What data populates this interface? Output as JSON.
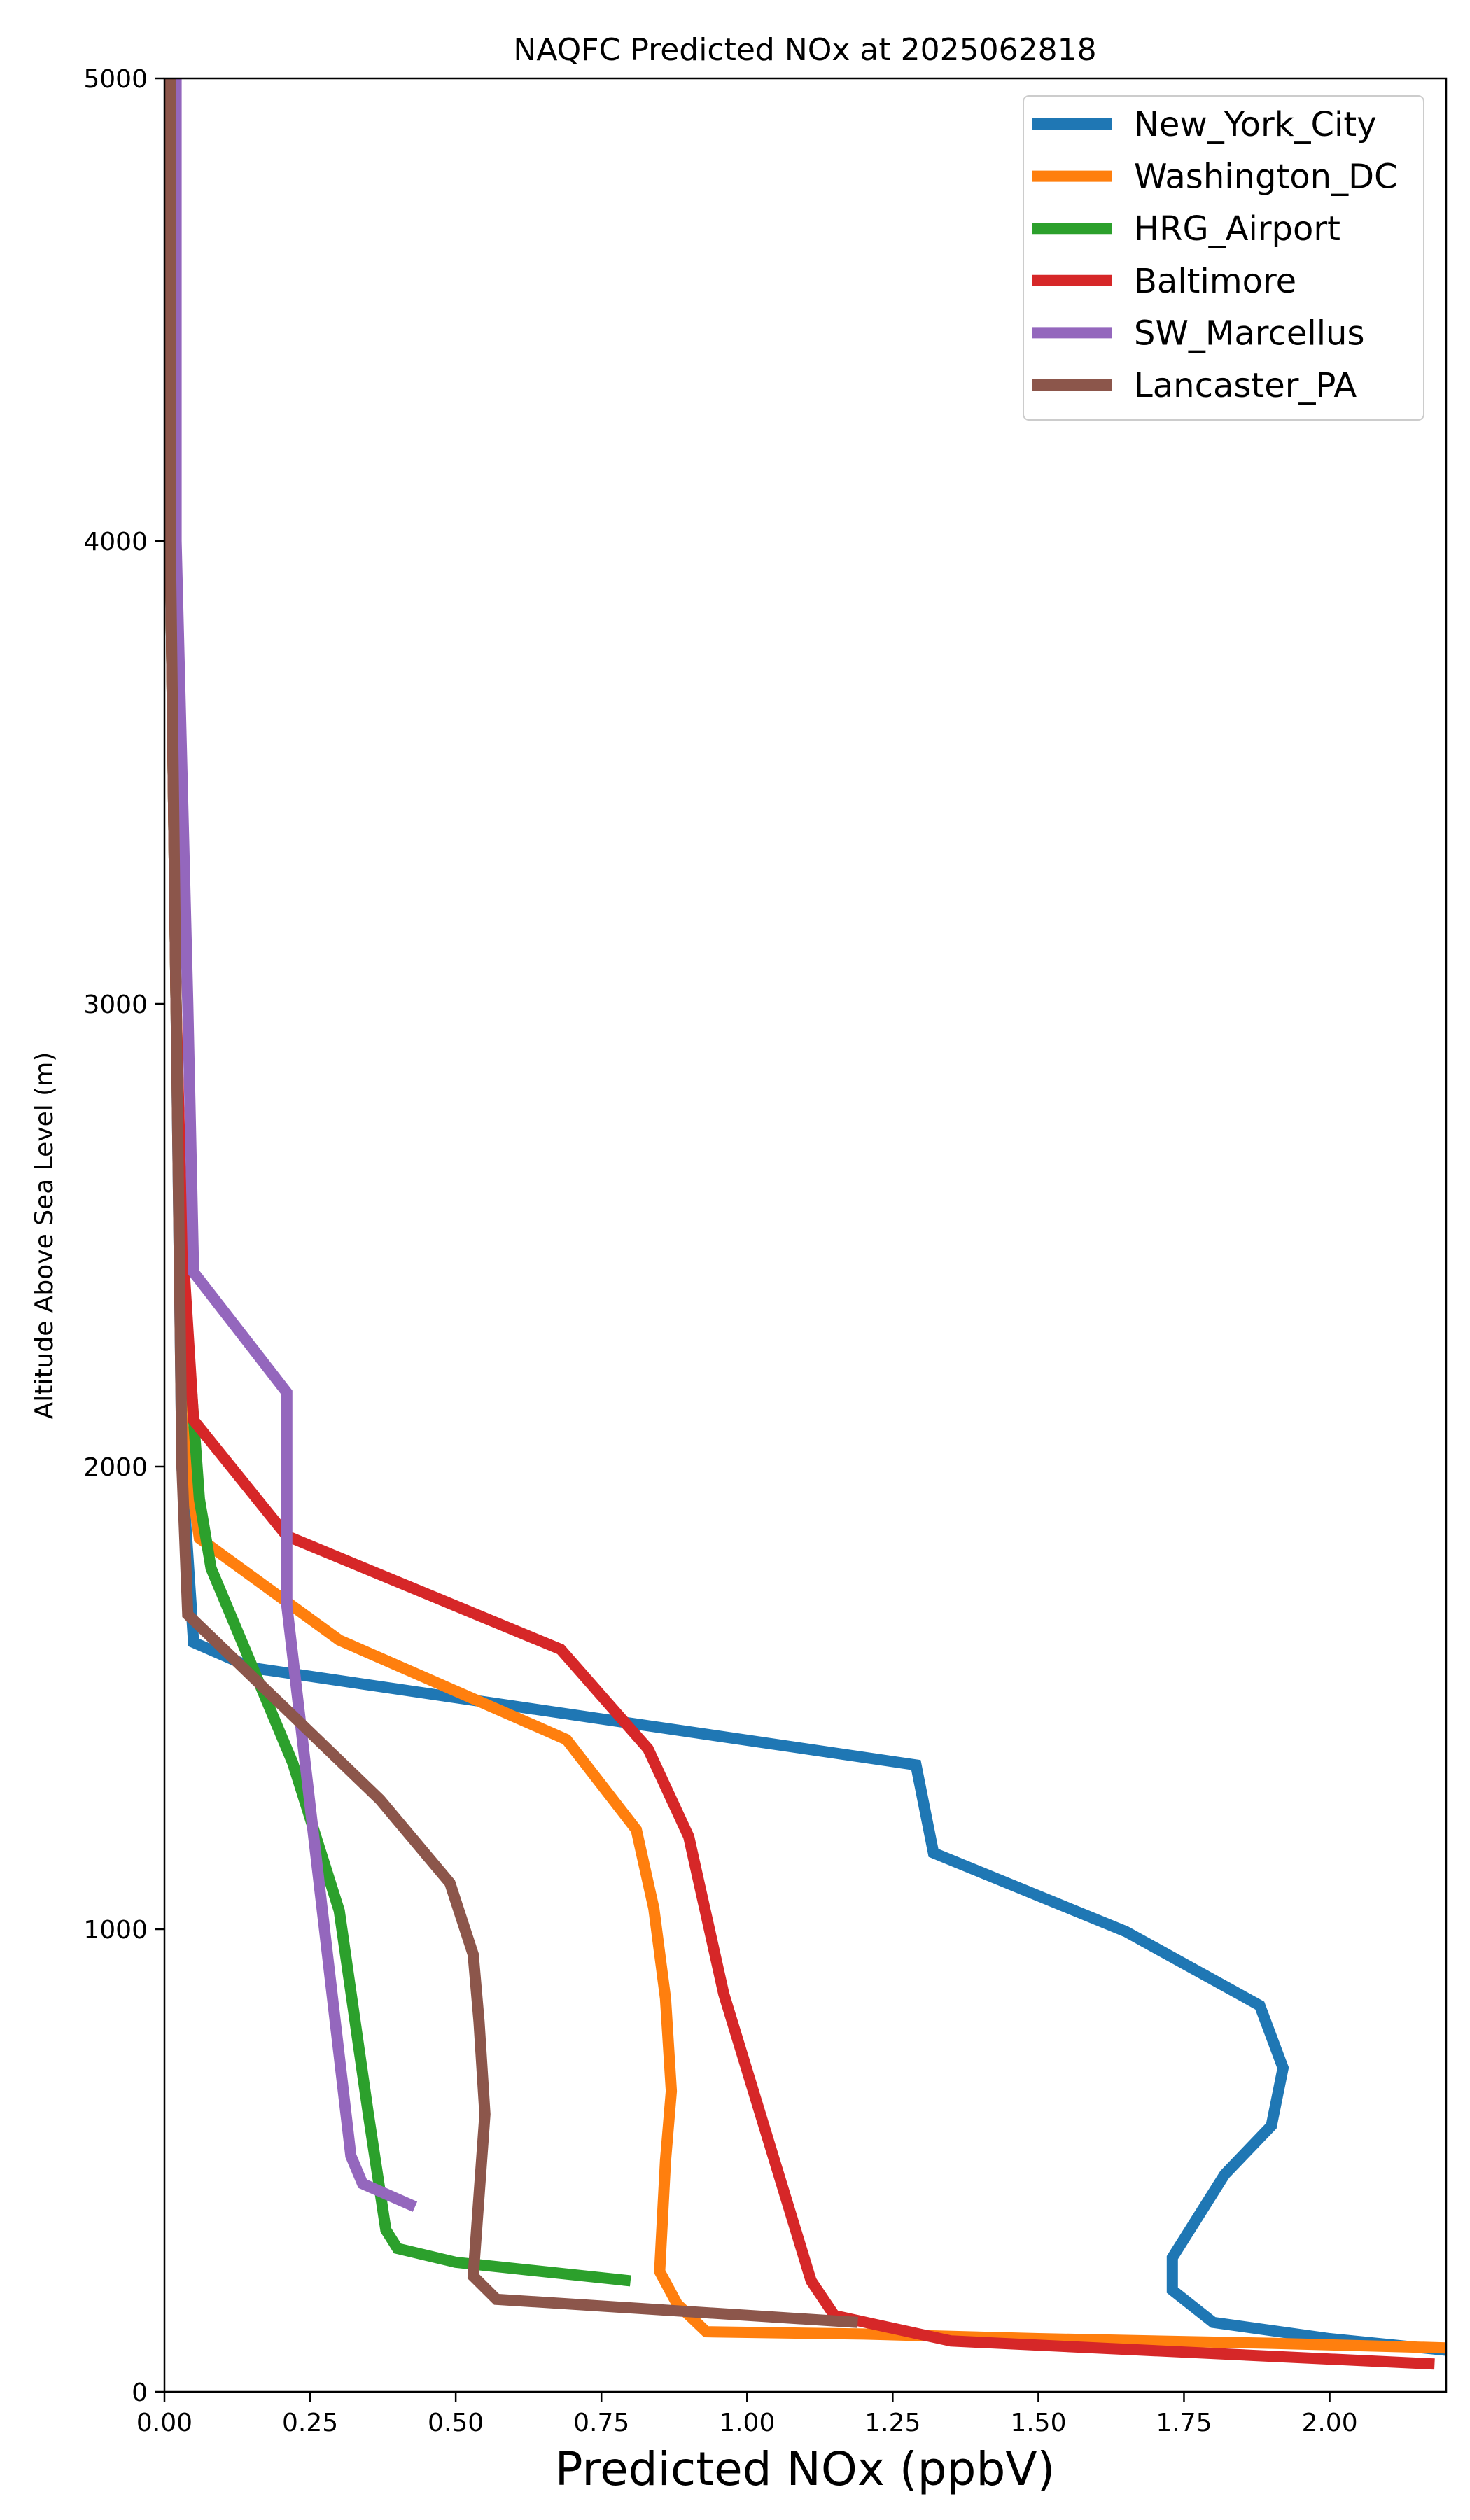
{
  "chart_data": {
    "type": "line",
    "title": "NAQFC Predicted NOx at 2025062818",
    "xlabel": "Predicted NOx (ppbV)",
    "ylabel": "Altitude Above Sea Level (m)",
    "xlim": [
      0.0,
      2.2
    ],
    "ylim": [
      0,
      5000
    ],
    "xticks": [
      0.0,
      0.25,
      0.5,
      0.75,
      1.0,
      1.25,
      1.5,
      1.75,
      2.0
    ],
    "xtick_labels": [
      "0.00",
      "0.25",
      "0.50",
      "0.75",
      "1.00",
      "1.25",
      "1.50",
      "1.75",
      "2.00"
    ],
    "yticks": [
      0,
      1000,
      2000,
      3000,
      4000,
      5000
    ],
    "ytick_labels": [
      "0",
      "1000",
      "2000",
      "3000",
      "4000",
      "5000"
    ],
    "grid": false,
    "legend_position": "top-right",
    "series": [
      {
        "name": "New_York_City",
        "color": "#1f77b4",
        "points": [
          [
            2.2,
            90
          ],
          [
            2.0,
            115
          ],
          [
            1.8,
            150
          ],
          [
            1.73,
            220
          ],
          [
            1.73,
            290
          ],
          [
            1.82,
            470
          ],
          [
            1.9,
            575
          ],
          [
            1.92,
            700
          ],
          [
            1.88,
            835
          ],
          [
            1.65,
            995
          ],
          [
            1.32,
            1165
          ],
          [
            1.29,
            1355
          ],
          [
            0.15,
            1565
          ],
          [
            0.05,
            1620
          ],
          [
            0.03,
            2000
          ],
          [
            0.02,
            3000
          ],
          [
            0.01,
            4000
          ],
          [
            0.01,
            5000
          ]
        ]
      },
      {
        "name": "Washington_DC",
        "color": "#ff7f0e",
        "points": [
          [
            2.2,
            95
          ],
          [
            1.9,
            105
          ],
          [
            1.5,
            115
          ],
          [
            1.2,
            125
          ],
          [
            0.93,
            130
          ],
          [
            0.88,
            190
          ],
          [
            0.85,
            260
          ],
          [
            0.86,
            500
          ],
          [
            0.87,
            650
          ],
          [
            0.86,
            850
          ],
          [
            0.84,
            1045
          ],
          [
            0.81,
            1215
          ],
          [
            0.69,
            1410
          ],
          [
            0.3,
            1625
          ],
          [
            0.06,
            1845
          ],
          [
            0.03,
            2100
          ],
          [
            0.02,
            3000
          ],
          [
            0.01,
            4000
          ],
          [
            0.01,
            5000
          ]
        ]
      },
      {
        "name": "HRG_Airport",
        "color": "#2ca02c",
        "points": [
          [
            0.8,
            240
          ],
          [
            0.5,
            280
          ],
          [
            0.4,
            310
          ],
          [
            0.38,
            350
          ],
          [
            0.35,
            600
          ],
          [
            0.3,
            1040
          ],
          [
            0.22,
            1360
          ],
          [
            0.08,
            1780
          ],
          [
            0.06,
            1930
          ],
          [
            0.03,
            2450
          ],
          [
            0.02,
            3000
          ],
          [
            0.01,
            4000
          ],
          [
            0.01,
            5000
          ]
        ]
      },
      {
        "name": "Baltimore",
        "color": "#d62728",
        "points": [
          [
            2.18,
            60
          ],
          [
            1.35,
            110
          ],
          [
            1.15,
            165
          ],
          [
            1.11,
            240
          ],
          [
            0.96,
            860
          ],
          [
            0.9,
            1200
          ],
          [
            0.83,
            1390
          ],
          [
            0.68,
            1605
          ],
          [
            0.21,
            1850
          ],
          [
            0.05,
            2100
          ],
          [
            0.03,
            2500
          ],
          [
            0.02,
            3000
          ],
          [
            0.01,
            4000
          ],
          [
            0.01,
            5000
          ]
        ]
      },
      {
        "name": "SW_Marcellus",
        "color": "#9467bd",
        "points": [
          [
            0.43,
            400
          ],
          [
            0.34,
            450
          ],
          [
            0.32,
            510
          ],
          [
            0.21,
            1700
          ],
          [
            0.21,
            2160
          ],
          [
            0.05,
            2420
          ],
          [
            0.04,
            3000
          ],
          [
            0.02,
            4000
          ],
          [
            0.02,
            5000
          ]
        ]
      },
      {
        "name": "Lancaster_PA",
        "color": "#8c564b",
        "points": [
          [
            1.19,
            150
          ],
          [
            0.57,
            200
          ],
          [
            0.53,
            250
          ],
          [
            0.55,
            600
          ],
          [
            0.54,
            800
          ],
          [
            0.53,
            945
          ],
          [
            0.49,
            1100
          ],
          [
            0.37,
            1280
          ],
          [
            0.23,
            1450
          ],
          [
            0.04,
            1680
          ],
          [
            0.03,
            2000
          ],
          [
            0.02,
            3000
          ],
          [
            0.01,
            4000
          ],
          [
            0.01,
            5000
          ]
        ]
      }
    ]
  }
}
